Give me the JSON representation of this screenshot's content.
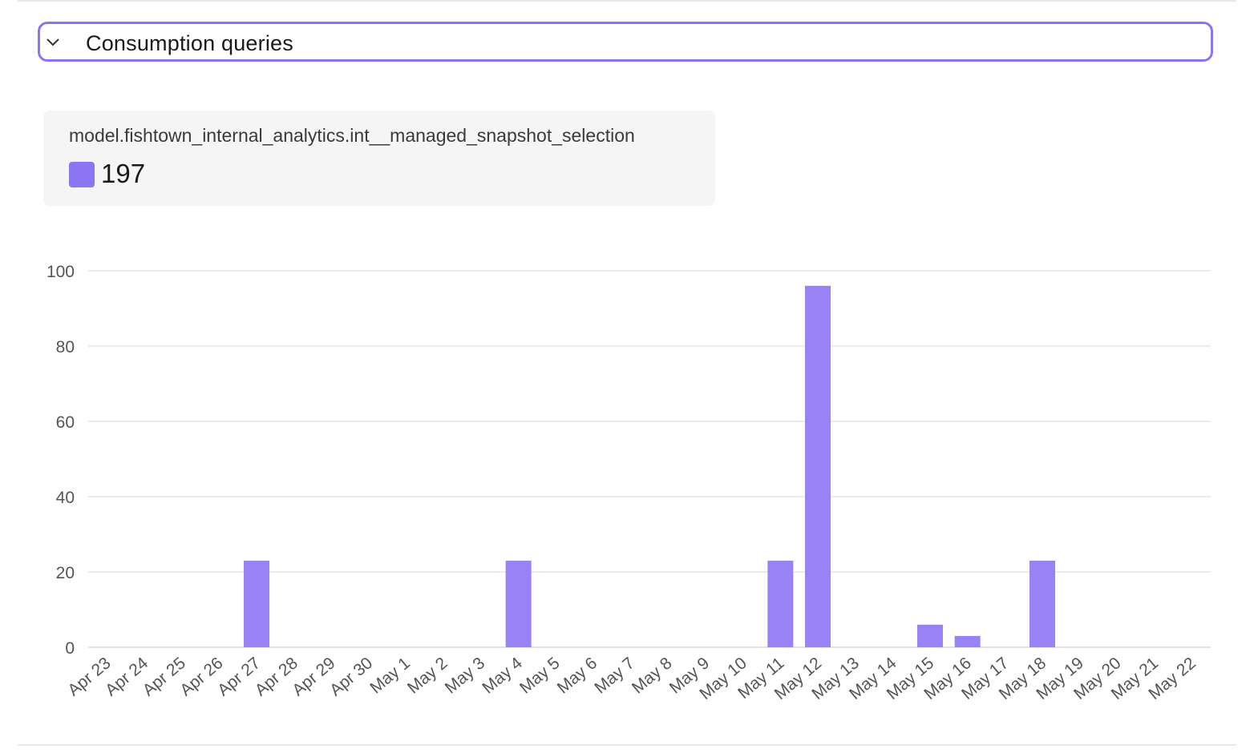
{
  "section": {
    "title": "Consumption queries",
    "icon": "chevron-down-icon"
  },
  "legend": {
    "label": "model.fishtown_internal_analytics.int__managed_snapshot_selection",
    "value": "197",
    "color": "#8b75f5"
  },
  "chart_data": {
    "type": "bar",
    "title": "",
    "xlabel": "",
    "ylabel": "",
    "ylim": [
      0,
      100
    ],
    "yticks": [
      "0",
      "20",
      "40",
      "60",
      "80",
      "100"
    ],
    "grid": true,
    "bar_color": "#9982f6",
    "categories": [
      "Apr 23",
      "Apr 24",
      "Apr 25",
      "Apr 26",
      "Apr 27",
      "Apr 28",
      "Apr 29",
      "Apr 30",
      "May 1",
      "May 2",
      "May 3",
      "May 4",
      "May 5",
      "May 6",
      "May 7",
      "May 8",
      "May 9",
      "May 10",
      "May 11",
      "May 12",
      "May 13",
      "May 14",
      "May 15",
      "May 16",
      "May 17",
      "May 18",
      "May 19",
      "May 20",
      "May 21",
      "May 22"
    ],
    "series": [
      {
        "name": "model.fishtown_internal_analytics.int__managed_snapshot_selection",
        "values": [
          0,
          0,
          0,
          0,
          23,
          0,
          0,
          0,
          0,
          0,
          0,
          23,
          0,
          0,
          0,
          0,
          0,
          0,
          23,
          96,
          0,
          0,
          6,
          3,
          0,
          23,
          0,
          0,
          0,
          0
        ]
      }
    ]
  }
}
